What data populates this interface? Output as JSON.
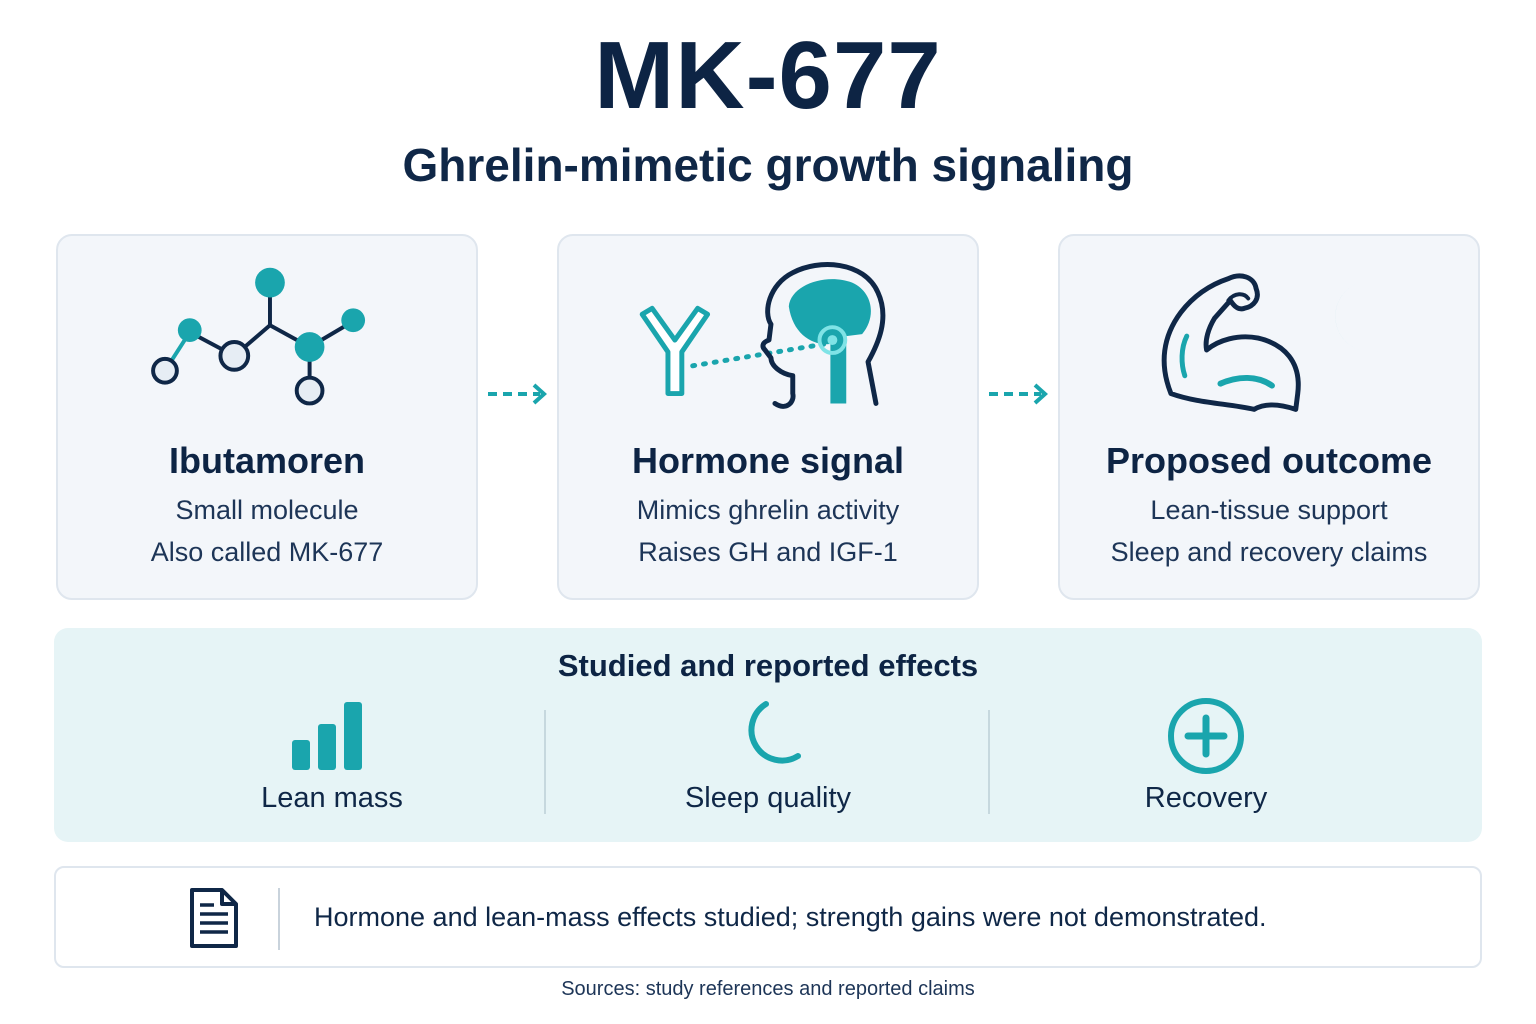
{
  "title": "MK-677",
  "subtitle": "Ghrelin-mimetic growth signaling",
  "colors": {
    "teal": "#1aa5ad",
    "navy": "#0f2747",
    "card_bg": "#f3f6fa",
    "effects_bg": "#e6f4f6"
  },
  "cards": [
    {
      "icon": "molecule-icon",
      "title": "Ibutamoren",
      "line1": "Small molecule",
      "line2": "Also called MK-677"
    },
    {
      "icon": "receptor-head-icon",
      "title": "Hormone signal",
      "line1": "Mimics ghrelin activity",
      "line2": "Raises GH and IGF-1"
    },
    {
      "icon": "muscle-moon-icon",
      "title": "Proposed outcome",
      "line1": "Lean-tissue support",
      "line2": "Sleep and recovery claims"
    }
  ],
  "effects": {
    "title": "Studied and reported effects",
    "items": [
      {
        "icon": "bar-chart-icon",
        "label": "Lean mass"
      },
      {
        "icon": "moon-icon",
        "label": "Sleep quality"
      },
      {
        "icon": "plus-circle-icon",
        "label": "Recovery"
      }
    ]
  },
  "note": {
    "icon": "document-icon",
    "text": "Hormone and lean-mass effects studied; strength gains were not demonstrated."
  },
  "sources": "Sources: study references and reported claims"
}
